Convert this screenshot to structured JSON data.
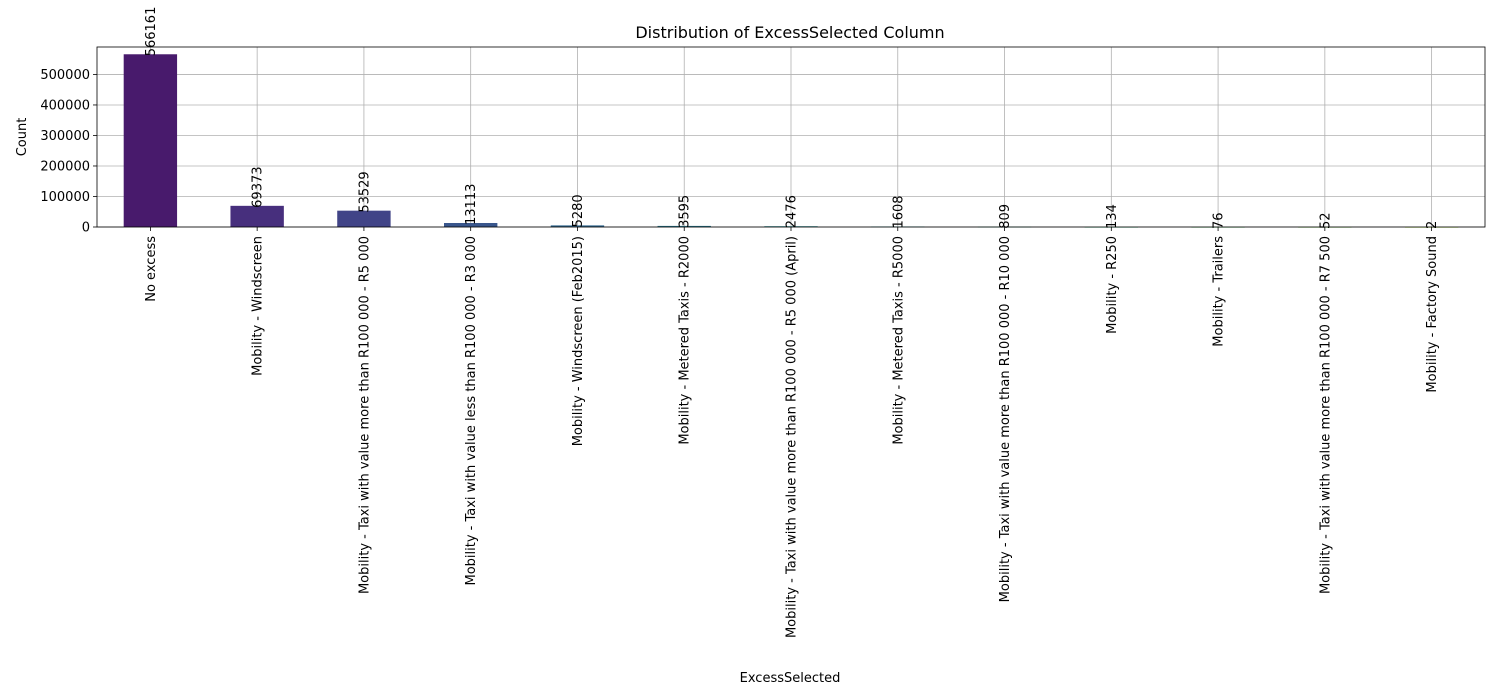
{
  "chart_data": {
    "type": "bar",
    "title": "Distribution of ExcessSelected Column",
    "xlabel": "ExcessSelected",
    "ylabel": "Count",
    "ylim": [
      0,
      590000
    ],
    "yticks": [
      0,
      100000,
      200000,
      300000,
      400000,
      500000
    ],
    "grid": true,
    "categories": [
      "No excess",
      "Mobility - Windscreen",
      "Mobility - Taxi with value more than R100 000 - R5 000",
      "Mobility - Taxi with value less than R100 000 - R3 000",
      "Mobility - Windscreen (Feb2015)",
      "Mobility - Metered Taxis - R2000",
      "Mobility - Taxi with value more than R100 000 - R5 000 (April)",
      "Mobility - Metered Taxis - R5000",
      "Mobility - Taxi with value more than R100 000 - R10 000",
      "Mobility - R250",
      "Mobility - Trailers",
      "Mobility - Taxi with value more than R100 000 - R7 500",
      "Mobility - Factory Sound"
    ],
    "values": [
      566161,
      69373,
      53529,
      13113,
      5280,
      3595,
      2476,
      1608,
      809,
      134,
      76,
      52,
      2
    ],
    "colors": [
      "#481a6c",
      "#472f7d",
      "#414487",
      "#39568c",
      "#31688e",
      "#2a788e",
      "#23888e",
      "#1f988b",
      "#22a884",
      "#35b779",
      "#54c568",
      "#7ad151",
      "#a5db36"
    ]
  }
}
